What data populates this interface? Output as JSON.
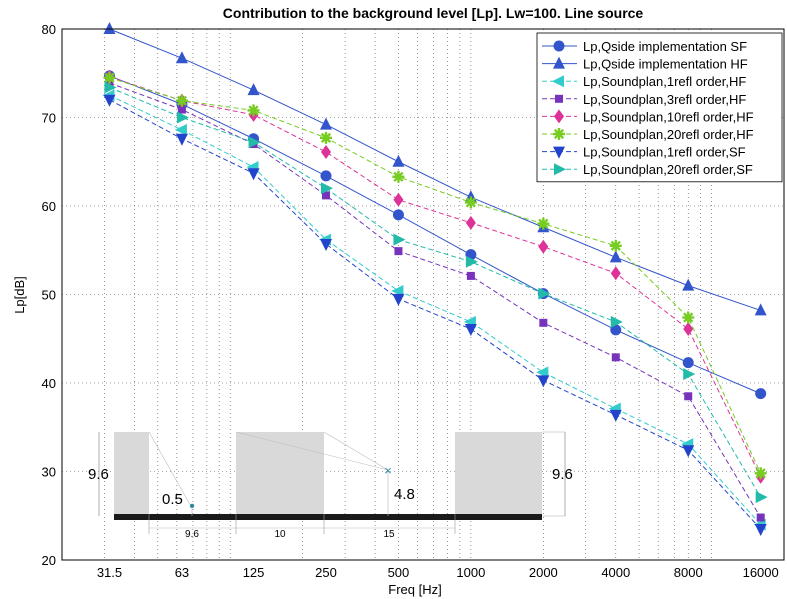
{
  "chart_data": {
    "type": "line",
    "title": "Contribution to the background level [Lp]. Lw=100. Line source",
    "xlabel": "Freq [Hz]",
    "ylabel": "Lp[dB]",
    "x_scale": "log",
    "xlim": [
      20,
      20000
    ],
    "ylim": [
      20,
      80
    ],
    "yticks": [
      "20",
      "30",
      "40",
      "50",
      "60",
      "70",
      "80"
    ],
    "categories": [
      "31.5",
      "63",
      "125",
      "250",
      "500",
      "1000",
      "2000",
      "4000",
      "8000",
      "16000"
    ],
    "grid": true,
    "legend_position": "top-right",
    "series": [
      {
        "name": "Lp,Qside implementation SF",
        "color": "#3355cc",
        "line": "solid",
        "marker": "circle",
        "values": [
          74.7,
          71.5,
          67.6,
          63.4,
          59.0,
          54.5,
          50.1,
          46.0,
          42.3,
          38.8
        ]
      },
      {
        "name": "Lp,Qside implementation HF",
        "color": "#3355cc",
        "line": "solid",
        "marker": "triangle-up",
        "values": [
          80.0,
          76.7,
          73.1,
          69.2,
          65.0,
          61.0,
          57.6,
          54.2,
          51.0,
          48.2
        ]
      },
      {
        "name": "Lp,Soundplan,1refl order,HF",
        "color": "#33cccc",
        "line": "dashed",
        "marker": "triangle-left",
        "values": [
          72.5,
          68.6,
          64.4,
          56.2,
          50.4,
          46.9,
          41.2,
          37.1,
          33.1,
          24.0
        ]
      },
      {
        "name": "Lp,Soundplan,3refl order,HF",
        "color": "#7733bb",
        "line": "dashed",
        "marker": "square",
        "values": [
          73.9,
          70.9,
          67.0,
          61.2,
          54.9,
          52.1,
          46.8,
          42.9,
          38.5,
          24.8
        ]
      },
      {
        "name": "Lp,Soundplan,10refl order,HF",
        "color": "#dd3399",
        "line": "dashed",
        "marker": "diamond",
        "values": [
          74.6,
          71.9,
          70.3,
          66.1,
          60.7,
          58.1,
          55.4,
          52.4,
          46.1,
          29.4
        ]
      },
      {
        "name": "Lp,Soundplan,20refl order,HF",
        "color": "#77cc22",
        "line": "dashed",
        "marker": "star",
        "values": [
          74.5,
          71.9,
          70.8,
          67.7,
          63.3,
          60.4,
          58.0,
          55.5,
          47.4,
          29.8
        ]
      },
      {
        "name": "Lp,Soundplan,1refl order,SF",
        "color": "#2244cc",
        "line": "dashed",
        "marker": "triangle-down",
        "values": [
          72.0,
          67.6,
          63.7,
          55.7,
          49.5,
          46.1,
          40.3,
          36.4,
          32.4,
          23.5
        ]
      },
      {
        "name": "Lp,Soundplan,20refl order,SF",
        "color": "#22bbaa",
        "line": "dashed",
        "marker": "triangle-right",
        "values": [
          73.4,
          70.0,
          67.2,
          62.0,
          56.2,
          53.7,
          50.1,
          46.9,
          41.0,
          27.1
        ]
      }
    ]
  },
  "inset": {
    "labels": {
      "height_left": "9.6",
      "height_right": "9.6",
      "source_height": "0.5",
      "receiver_height": "4.8",
      "dist_a": "9.6",
      "dist_b": "10",
      "dist_c": "15"
    },
    "source_marker": "•",
    "receiver_marker": "×"
  }
}
